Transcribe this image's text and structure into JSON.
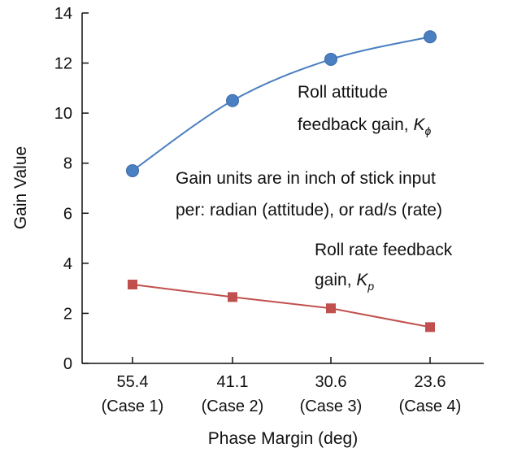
{
  "chart_data": {
    "type": "line",
    "categories": [
      {
        "value": "55.4",
        "case": "(Case 1)"
      },
      {
        "value": "41.1",
        "case": "(Case 2)"
      },
      {
        "value": "30.6",
        "case": "(Case 3)"
      },
      {
        "value": "23.6",
        "case": "(Case 4)"
      }
    ],
    "ylim": [
      0,
      14
    ],
    "yticks": [
      "0",
      "2",
      "4",
      "6",
      "8",
      "10",
      "12",
      "14"
    ],
    "xlabel": "Phase Margin (deg)",
    "ylabel": "Gain Value",
    "series": [
      {
        "key": "roll_attitude",
        "marker": "circle",
        "color": "#4a7fc1",
        "values": [
          7.7,
          10.5,
          12.15,
          13.05
        ]
      },
      {
        "key": "roll_rate",
        "marker": "square",
        "color": "#c0504d",
        "values": [
          3.15,
          2.65,
          2.2,
          1.45
        ]
      }
    ],
    "annotations": {
      "roll_attitude_line1": "Roll attitude",
      "roll_attitude_line2": "feedback gain, ",
      "roll_attitude_symbol": "K",
      "roll_attitude_sub": "ϕ",
      "units_line1": "Gain units are in inch of stick input",
      "units_line2": "per: radian (attitude), or rad/s (rate)",
      "roll_rate_line1": "Roll rate feedback",
      "roll_rate_line2": "gain, ",
      "roll_rate_symbol": "K",
      "roll_rate_sub": "p"
    },
    "grid": false,
    "legend": "none"
  }
}
